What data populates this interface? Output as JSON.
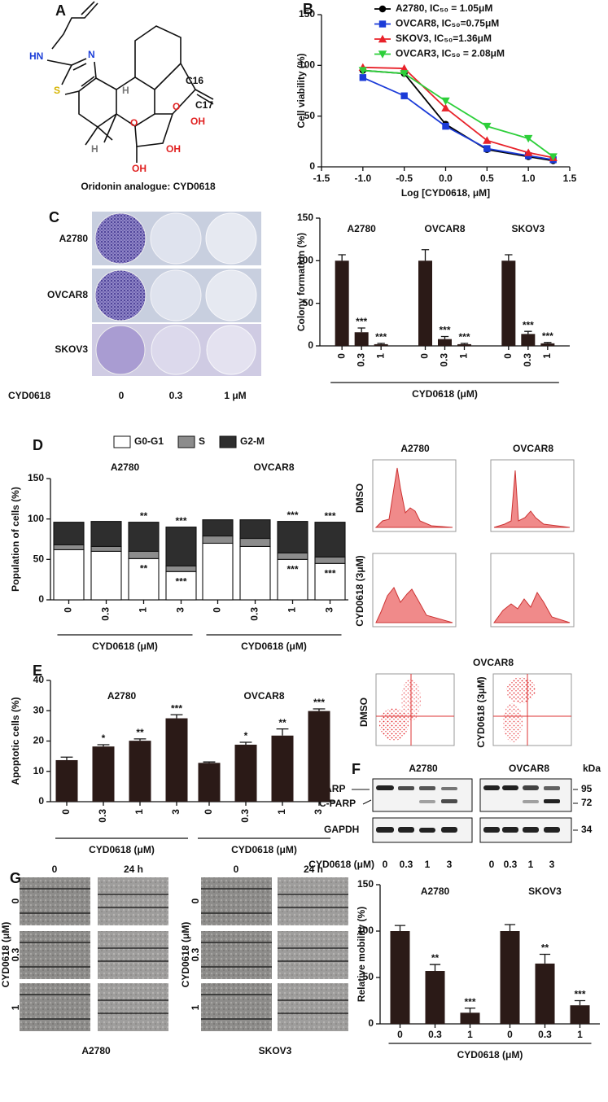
{
  "figure": {
    "A": {
      "panel": "A",
      "labels": [
        "HN",
        "N",
        "S",
        "H",
        "C16",
        "C17",
        "OH",
        "O",
        "O",
        "OH",
        "H",
        "OH"
      ],
      "caption": "Oridonin analogue: CYD0618"
    },
    "C": {
      "rows": [
        "A2780",
        "OVCAR8",
        "SKOV3"
      ],
      "treatment": "CYD0618",
      "doses": [
        "0",
        "0.3",
        "1 μM"
      ]
    },
    "D": {
      "columns": [
        "A2780",
        "OVCAR8"
      ],
      "rows": [
        "DMSO",
        "CYD0618 (3μM)"
      ]
    },
    "E": {
      "title": "OVCAR8",
      "rows": [
        "DMSO",
        "CYD0618 (3μM)"
      ]
    },
    "F": {
      "panel": "F",
      "cell_lines": [
        "A2780",
        "OVCAR8"
      ],
      "unit": "kDa",
      "proteins": [
        "PARP",
        "C-PARP",
        "GAPDH"
      ],
      "markers": [
        95,
        72,
        34
      ],
      "treatment": "CYD0618 (μM)",
      "doses": [
        "0",
        "0.3",
        "1",
        "3",
        "0",
        "0.3",
        "1",
        "3"
      ]
    },
    "G": {
      "times": [
        "0",
        "24 h"
      ],
      "treatment": "CYD0618 (μM)",
      "doses": [
        "0",
        "0.3",
        "1"
      ],
      "cell_lines": [
        "A2780",
        "SKOV3"
      ]
    }
  },
  "chart_data": [
    {
      "panel": "B",
      "type": "line",
      "xlabel": "Log [CYD0618, μM]",
      "ylabel": "Cell viability (%)",
      "x": [
        -1,
        -0.5,
        0,
        0.5,
        1,
        1.3
      ],
      "xlim": [
        -1.5,
        1.5
      ],
      "xticks": [
        -1.5,
        {
          "value": -1,
          "label": "-1.0"
        },
        -0.5,
        {
          "value": 0,
          "label": "0.0"
        },
        0.5,
        {
          "value": 1,
          "label": "1.0"
        },
        1.5
      ],
      "ylim": [
        0,
        150
      ],
      "yticks": [
        0,
        50,
        100,
        150
      ],
      "legend": "top-right",
      "series": [
        {
          "name": "A2780, IC₅₀ = 1.05μM",
          "color": "#000000",
          "marker": "circle",
          "values": [
            95,
            92,
            42,
            17,
            10,
            6
          ]
        },
        {
          "name": "OVCAR8, IC₅₀=0.75μM",
          "color": "#1b3bd8",
          "marker": "square",
          "values": [
            88,
            70,
            40,
            18,
            11,
            7
          ]
        },
        {
          "name": "SKOV3, IC₅₀=1.36μM",
          "color": "#e8222a",
          "marker": "triangle",
          "values": [
            98,
            97,
            58,
            26,
            14,
            9
          ]
        },
        {
          "name": "OVCAR3, IC₅₀ = 2.08μM",
          "color": "#2dcf3a",
          "marker": "triangle-down",
          "values": [
            95,
            92,
            65,
            40,
            28,
            10
          ]
        }
      ]
    },
    {
      "panel": "C",
      "type": "bar",
      "ylabel": "Colony formation (%)",
      "xlabel": "CYD0618 (μM)",
      "xlabel_per_group": false,
      "rotate_labels": true,
      "groups": [
        "A2780",
        "OVCAR8",
        "SKOV3"
      ],
      "categories": [
        "0",
        "0.3",
        "1",
        "0",
        "0.3",
        "1",
        "0",
        "0.3",
        "1"
      ],
      "values": [
        100,
        16,
        2,
        100,
        8,
        2,
        100,
        14,
        3
      ],
      "errors": [
        7,
        5,
        1,
        13,
        3,
        1,
        7,
        3,
        1
      ],
      "significance": [
        null,
        "***",
        "***",
        null,
        "***",
        "***",
        null,
        "***",
        "***"
      ],
      "color": "#2b1a17",
      "ylim": [
        0,
        150
      ],
      "yticks": [
        0,
        50,
        100,
        150
      ]
    },
    {
      "panel": "D",
      "type": "stacked_bar",
      "ylabel": "Population of cells (%)",
      "xlabel": "CYD0618 (μM)",
      "xlabel_per_group": true,
      "rotate_labels": true,
      "groups": [
        "A2780",
        "OVCAR8"
      ],
      "categories": [
        "0",
        "0.3",
        "1",
        "3",
        "0",
        "0.3",
        "1",
        "3"
      ],
      "series": [
        {
          "name": "G0-G1",
          "color": "#ffffff",
          "values": [
            62,
            60,
            51,
            35,
            70,
            66,
            50,
            45
          ],
          "significance": [
            null,
            null,
            "**",
            "***",
            null,
            null,
            "***",
            "***"
          ]
        },
        {
          "name": "S",
          "color": "#8c8c8c",
          "values": [
            6,
            6,
            9,
            7,
            9,
            10,
            8,
            8
          ]
        },
        {
          "name": "G2-M",
          "color": "#2e2e2e",
          "values": [
            28,
            31,
            36,
            48,
            20,
            23,
            39,
            43
          ],
          "significance": [
            null,
            null,
            "**",
            "***",
            null,
            null,
            "***",
            "***"
          ]
        }
      ],
      "legend": "top",
      "ylim": [
        0,
        150
      ],
      "yticks": [
        0,
        50,
        100,
        150
      ]
    },
    {
      "panel": "E",
      "type": "bar",
      "ylabel": "Apoptotic cells (%)",
      "xlabel": "CYD0618 (μM)",
      "xlabel_per_group": true,
      "rotate_labels": true,
      "groups": [
        "A2780",
        "OVCAR8"
      ],
      "categories": [
        "0",
        "0.3",
        "1",
        "3",
        "0",
        "0.3",
        "1",
        "3"
      ],
      "values": [
        13.7,
        18.2,
        20.1,
        27.5,
        12.8,
        18.8,
        21.8,
        29.9
      ],
      "errors": [
        1,
        0.6,
        0.6,
        1.2,
        0.3,
        0.8,
        2.2,
        0.7
      ],
      "significance": [
        null,
        "*",
        "**",
        "***",
        null,
        "*",
        "**",
        "***"
      ],
      "color": "#2b1a17",
      "ylim": [
        0,
        40
      ],
      "yticks": [
        0,
        10,
        20,
        30,
        40
      ]
    },
    {
      "panel": "G",
      "type": "bar",
      "ylabel": "Relative mobility (%)",
      "xlabel": "CYD0618 (μM)",
      "xlabel_per_group": false,
      "rotate_labels": false,
      "groups": [
        "A2780",
        "SKOV3"
      ],
      "categories": [
        "0",
        "0.3",
        "1",
        "0",
        "0.3",
        "1"
      ],
      "values": [
        100,
        57,
        12,
        100,
        65,
        20
      ],
      "errors": [
        6,
        7,
        5,
        7,
        10,
        5
      ],
      "significance": [
        null,
        "**",
        "***",
        null,
        "**",
        "***"
      ],
      "color": "#2b1a17",
      "ylim": [
        0,
        150
      ],
      "yticks": [
        0,
        50,
        100,
        150
      ]
    }
  ]
}
